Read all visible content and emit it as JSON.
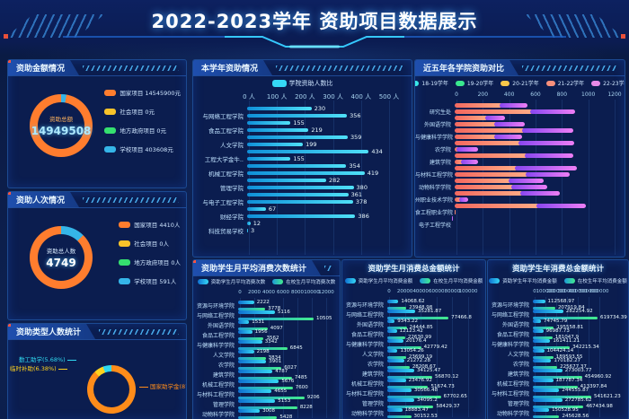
{
  "header": {
    "title": "2022-2023学年 资助项目数据展示"
  },
  "panels": {
    "amount": {
      "title": "资助金额情况",
      "center_label": "资助总额",
      "center_value": "14949508",
      "donut_segments": [
        {
          "color": "#35b5e8",
          "pct": 2.7
        },
        {
          "color": "#ff7d2e",
          "pct": 97.3
        }
      ],
      "legend": [
        {
          "label": "国家项目 14545900元",
          "color": "#ff7d2e"
        },
        {
          "label": "社会项目 0元",
          "color": "#f8c32a"
        },
        {
          "label": "地方政府项目 0元",
          "color": "#35e06f"
        },
        {
          "label": "学校项目 403608元",
          "color": "#35b5e8"
        }
      ]
    },
    "people": {
      "title": "资助人次情况",
      "center_label": "资助总人数",
      "center_value": "4749",
      "donut_segments": [
        {
          "color": "#35b5e8",
          "pct": 12.4
        },
        {
          "color": "#ff7d2e",
          "pct": 87.6
        }
      ],
      "legend": [
        {
          "label": "国家项目 4410人",
          "color": "#ff7d2e"
        },
        {
          "label": "社会项目 0人",
          "color": "#f8c32a"
        },
        {
          "label": "地方政府项目 0人",
          "color": "#35e06f"
        },
        {
          "label": "学校项目 591人",
          "color": "#35b5e8"
        }
      ]
    },
    "type": {
      "title": "资助类型人数统计",
      "slices": [
        {
          "label": "国家助学金(87.94%)",
          "pct": 87.94,
          "color": "#ff8c1a"
        },
        {
          "label": "临时补助(6.38%)",
          "pct": 6.38,
          "color": "#ffd21e"
        },
        {
          "label": "勤工助学(5.68%)",
          "pct": 5.68,
          "color": "#2fd8f0"
        }
      ]
    }
  },
  "chart_data": [
    {
      "id": "current_year",
      "type": "bar",
      "title": "本学年资助情况",
      "legend": [
        {
          "label": "学院资助人数比",
          "color": "#35d8f5"
        }
      ],
      "x_ticks": [
        "0 人",
        "100 人",
        "200 人",
        "300 人",
        "400 人",
        "500 人"
      ],
      "xlim": [
        0,
        500
      ],
      "bar_color": [
        "#0f8fd8",
        "#4fe0f7"
      ],
      "rows": [
        {
          "label": "",
          "value": 230
        },
        {
          "label": "与网络工程学院",
          "value": 356
        },
        {
          "label": "",
          "value": 155
        },
        {
          "label": "食品工程学院",
          "value": 219
        },
        {
          "label": "",
          "value": 359
        },
        {
          "label": "人文学院",
          "value": 199
        },
        {
          "label": "",
          "value": 434
        },
        {
          "label": "工程大学金牛..",
          "value": 155
        },
        {
          "label": "",
          "value": 354
        },
        {
          "label": "机械工程学院",
          "value": 419
        },
        {
          "label": "",
          "value": 282
        },
        {
          "label": "管理学院",
          "value": 380
        },
        {
          "label": "",
          "value": 361
        },
        {
          "label": "与电子工程学院",
          "value": 378
        },
        {
          "label": "",
          "value": 67
        },
        {
          "label": "财经学院",
          "value": 386
        },
        {
          "label": "",
          "value": 12
        },
        {
          "label": "科技贸易学校",
          "value": 3
        }
      ]
    },
    {
      "id": "five_year",
      "type": "stacked",
      "title": "近五年各学院资助对比",
      "legend": [
        {
          "label": "18-19学年",
          "color": "#3ae8e8"
        },
        {
          "label": "19-20学年",
          "color": "#3ae88e"
        },
        {
          "label": "20-21学年",
          "color": "#f8c84a"
        },
        {
          "label": "21-22学年",
          "color": "#f8907c"
        },
        {
          "label": "22-23学年",
          "color": "#e88ae8"
        }
      ],
      "series_names": [
        "21-22学年",
        "22-23学年"
      ],
      "series_colors": [
        [
          "#f3685f",
          "#ffab85"
        ],
        [
          "#8746f0",
          "#ef7ef5"
        ]
      ],
      "x_ticks": [
        0,
        200,
        400,
        600,
        800,
        1000,
        1200
      ],
      "xlim": [
        0,
        1200
      ],
      "rows": [
        {
          "label": "",
          "values": [
            360,
            215
          ]
        },
        {
          "label": "研究生处",
          "values": [
            590,
            345
          ]
        },
        {
          "label": "",
          "values": [
            250,
            150
          ]
        },
        {
          "label": "外国语学院",
          "values": [
            320,
            230
          ]
        },
        {
          "label": "",
          "values": [
            530,
            390
          ]
        },
        {
          "label": "与健康科学学院",
          "values": [
            320,
            210
          ]
        },
        {
          "label": "",
          "values": [
            505,
            425
          ]
        },
        {
          "label": "农学院",
          "values": [
            35,
            160
          ]
        },
        {
          "label": "",
          "values": [
            550,
            370
          ]
        },
        {
          "label": "建筑学院",
          "values": [
            70,
            125
          ]
        },
        {
          "label": "",
          "values": [
            480,
            465
          ]
        },
        {
          "label": "与材料工程学院",
          "values": [
            560,
            330
          ]
        },
        {
          "label": "",
          "values": [
            430,
            265
          ]
        },
        {
          "label": "动物科学学院",
          "values": [
            450,
            270
          ]
        },
        {
          "label": "",
          "values": [
            520,
            300
          ]
        },
        {
          "label": "州职业技术学院",
          "values": [
            55,
            65
          ]
        },
        {
          "label": "",
          "values": [
            640,
            375
          ]
        },
        {
          "label": "食工程职业学院",
          "values": [
            4,
            3
          ]
        },
        {
          "label": "",
          "values": [
            3,
            2
          ]
        },
        {
          "label": "电子工程学校",
          "values": [
            1,
            1
          ]
        }
      ]
    },
    {
      "id": "monthly_count",
      "type": "grouped",
      "title": "资助学生月平均消费次数统计",
      "x_ticks": [
        0,
        2000,
        4000,
        6000,
        8000,
        10000,
        12000
      ],
      "xlim": [
        0,
        12000
      ],
      "categories": [
        "资源与环境学院",
        "与网络工程学院",
        "外国语学院",
        "食品工程学院",
        "与健康科学学院",
        "人文学院",
        "农学院",
        "建筑学院",
        "机械工程学院",
        "与材料工程学院",
        "管理学院",
        "动物科学学院"
      ],
      "series": [
        {
          "name": "资助学生月平均消费次数",
          "color": [
            "#0f6fd0",
            "#35d8f5"
          ],
          "values": [
            2222,
            5116,
            1531,
            1956,
            3342,
            2198,
            3901,
            4787,
            5676,
            4655,
            5153,
            3008
          ]
        },
        {
          "name": "在校生月平均消费次数",
          "color": [
            "#1d9ad8",
            "#42eb8e"
          ],
          "values": [
            3778,
            10505,
            4097,
            3562,
            6845,
            3834,
            6027,
            7485,
            7600,
            9206,
            8228,
            5428
          ]
        }
      ]
    },
    {
      "id": "monthly_amount",
      "type": "grouped",
      "title": "资助学生月消费总金额统计",
      "x_ticks": [
        0,
        20000,
        40000,
        60000,
        80000,
        100000
      ],
      "xlim": [
        0,
        100000
      ],
      "categories": [
        "资源与环境学院",
        "与网络工程学院",
        "外国语学院",
        "食品工程学院",
        "与健康科学学院",
        "人文学院",
        "农学院",
        "建筑学院",
        "机械工程学院",
        "与材料工程学院",
        "管理学院",
        "动物科学学院"
      ],
      "series": [
        {
          "name": "资助学生月平均消费金额",
          "color": [
            "#0f6fd0",
            "#35d8f5"
          ],
          "values": [
            14068.62,
            35281.87,
            9343.22,
            12123.42,
            20176.4,
            13054.26,
            21272.28,
            34125.47,
            23476.92,
            30566.48,
            34095.2,
            18883.47
          ]
        },
        {
          "name": "在校生月平均消费金额",
          "color": [
            "#1d9ad8",
            "#42eb8e"
          ],
          "values": [
            23948.98,
            77466.8,
            24444.85,
            22630.99,
            42779.42,
            23699.19,
            28208.67,
            56870.12,
            51674.73,
            67702.65,
            58429.37,
            30152.53
          ]
        }
      ]
    },
    {
      "id": "yearly_amount",
      "type": "grouped",
      "title": "资助学生年消费总金额统计",
      "x_ticks": [
        0,
        100000,
        200000,
        300000,
        400000,
        500000,
        600000
      ],
      "xlim": [
        0,
        600000
      ],
      "categories": [
        "资源与环境学院",
        "与网络工程学院",
        "外国语学院",
        "食品工程学院",
        "与健康科学学院",
        "人文学院",
        "农学院",
        "建筑学院",
        "机械工程学院",
        "与材料工程学院",
        "管理学院",
        "动物科学学院"
      ],
      "series": [
        {
          "name": "资助学生年平均消费金额",
          "color": [
            "#0f6fd0",
            "#35d8f5"
          ],
          "values": [
            112568.97,
            282254.92,
            74745.79,
            96987.73,
            161411.21,
            104424.14,
            170182.27,
            273003.77,
            187787.34,
            244555.87,
            272785.62,
            150528.95
          ]
        },
        {
          "name": "在校生年平均消费金额",
          "color": [
            "#1d9ad8",
            "#42eb8e"
          ],
          "values": [
            207919.84,
            619734.39,
            195558.81,
            181047.9,
            342215.34,
            189593.55,
            225677.37,
            454960.92,
            413397.84,
            541621.23,
            467434.98,
            245628.56
          ]
        }
      ]
    }
  ]
}
